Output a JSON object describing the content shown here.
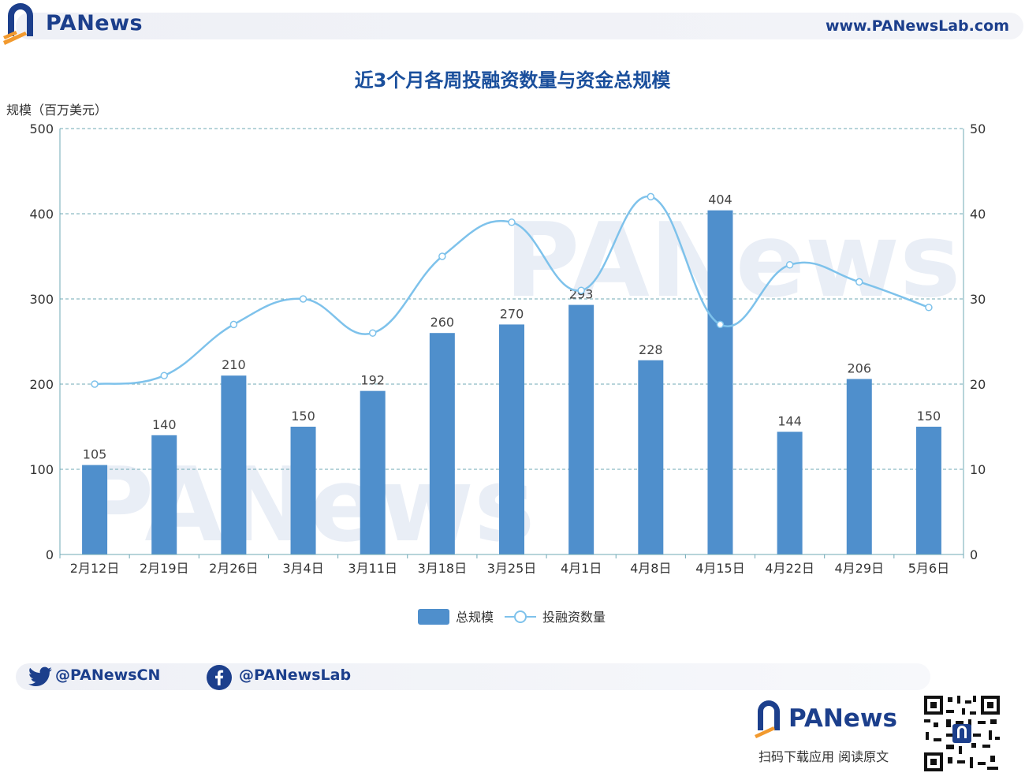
{
  "header": {
    "brand": "PANews",
    "url": "www.PANewsLab.com"
  },
  "chart_data": {
    "type": "bar",
    "title": "近3个月各周投融资数量与资金总规模",
    "ylabel": "规模（百万美元）",
    "y2label": "",
    "categories": [
      "2月12日",
      "2月19日",
      "2月26日",
      "3月4日",
      "3月11日",
      "3月18日",
      "3月25日",
      "4月1日",
      "4月8日",
      "4月15日",
      "4月22日",
      "4月29日",
      "5月6日"
    ],
    "ylim": [
      0,
      500
    ],
    "yticks": [
      0,
      100,
      200,
      300,
      400,
      500
    ],
    "y2lim": [
      0,
      50
    ],
    "y2ticks": [
      0,
      10,
      20,
      30,
      40,
      50
    ],
    "grid": true,
    "legend_position": "bottom-center",
    "series": [
      {
        "name": "总规模",
        "type": "bar",
        "axis": "left",
        "color": "#4f8fcc",
        "values": [
          105,
          140,
          210,
          150,
          192,
          260,
          270,
          293,
          228,
          404,
          144,
          206,
          150
        ]
      },
      {
        "name": "投融资数量",
        "type": "line",
        "axis": "right",
        "color": "#7ec2eb",
        "smooth": true,
        "values": [
          20,
          21,
          27,
          30,
          26,
          35,
          39,
          31,
          42,
          27,
          34,
          32,
          29
        ]
      }
    ]
  },
  "footer": {
    "twitter": "@PANewsCN",
    "facebook": "@PANewsLab",
    "brand": "PANews",
    "caption": "扫码下载应用  阅读原文"
  },
  "icons": {
    "logo": "panews-logo-icon",
    "twitter": "twitter-icon",
    "facebook": "facebook-icon",
    "qr": "qr-code-icon"
  }
}
